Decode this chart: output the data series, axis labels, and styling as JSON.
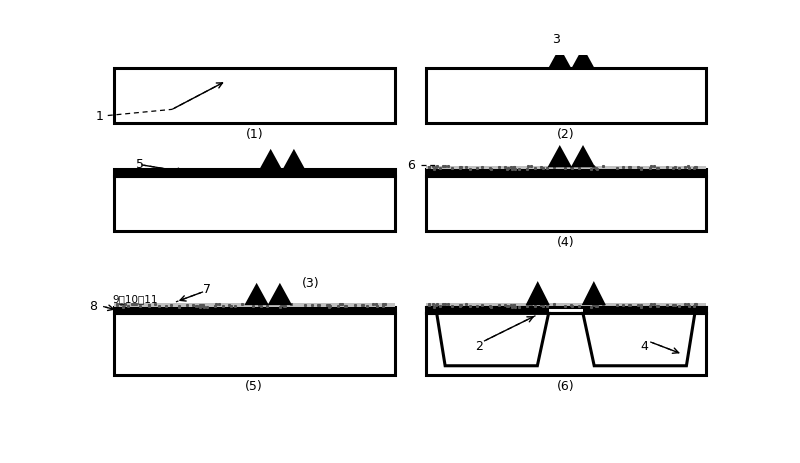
{
  "bg": "#ffffff",
  "lc": "#000000",
  "gray": "#aaaaaa",
  "tlw": 2.2,
  "plw": 1.5,
  "fig_w": 8.0,
  "fig_h": 4.64,
  "dpi": 100
}
